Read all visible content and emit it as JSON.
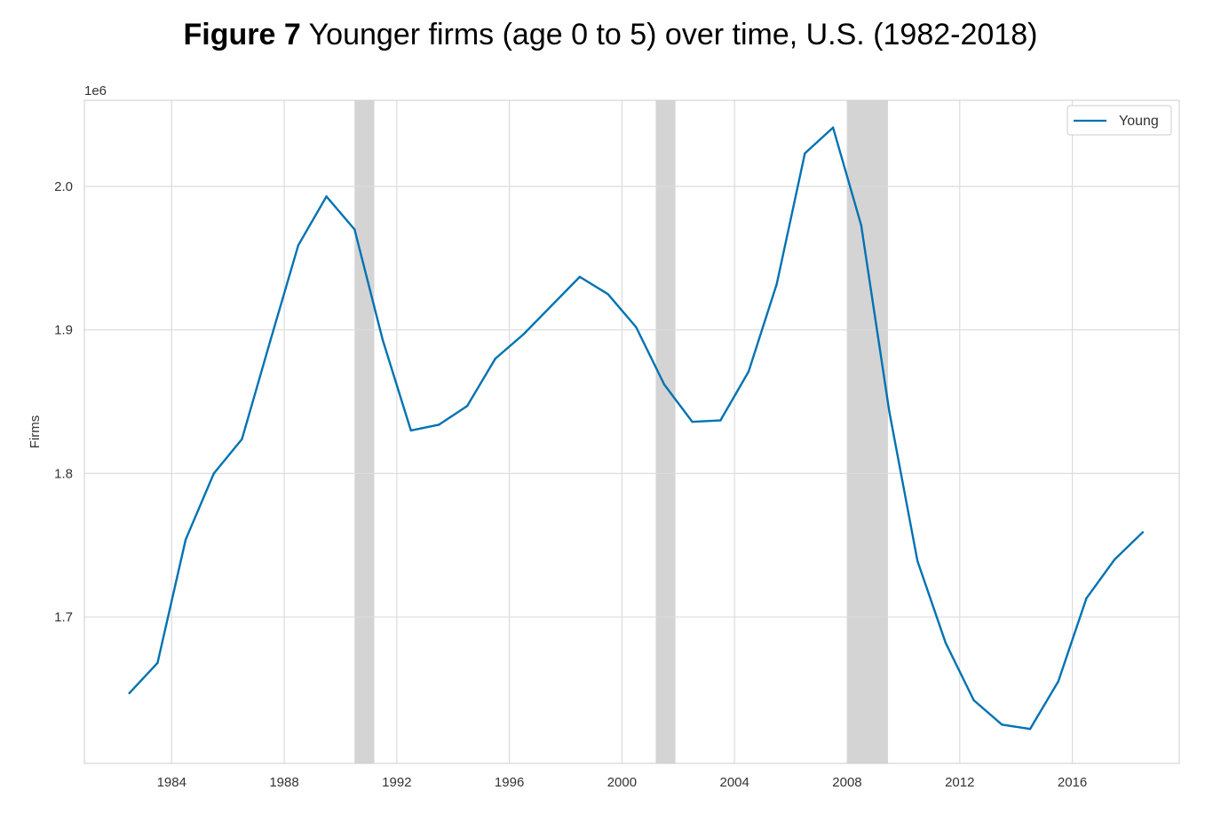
{
  "title": {
    "bold": "Figure 7",
    "rest": "Younger firms (age 0 to 5) over time, U.S. (1982-2018)"
  },
  "colors": {
    "series": "#0072b2",
    "grid": "#dcdcdc",
    "recession": "#d4d4d4",
    "axes_border": "#cccccc"
  },
  "chart_data": {
    "type": "line",
    "title": "Figure 7 Younger firms (age 0 to 5) over time, U.S. (1982-2018)",
    "ylabel": "Firms",
    "xlabel": "",
    "y_offset_label": "1e6",
    "xlim": [
      1980.9,
      2019.8
    ],
    "ylim": [
      1.598,
      2.06
    ],
    "x_ticks": [
      1984,
      1988,
      1992,
      1996,
      2000,
      2004,
      2008,
      2012,
      2016
    ],
    "x_tick_labels": [
      "1984",
      "1988",
      "1992",
      "1996",
      "2000",
      "2004",
      "2008",
      "2012",
      "2016"
    ],
    "y_ticks": [
      1.7,
      1.8,
      1.9,
      2.0
    ],
    "y_tick_labels": [
      "1.7",
      "1.8",
      "1.9",
      "2.0"
    ],
    "grid": true,
    "legend_position": "top-right",
    "recession_spans": [
      [
        1990.5,
        1991.2
      ],
      [
        2001.2,
        2001.9
      ],
      [
        2008.0,
        2009.45
      ]
    ],
    "series": [
      {
        "name": "Young",
        "x": [
          1982.5,
          1983.5,
          1984.5,
          1985.5,
          1986.5,
          1987.5,
          1988.5,
          1989.5,
          1990.5,
          1991.5,
          1992.5,
          1993.5,
          1994.5,
          1995.5,
          1996.5,
          1997.5,
          1998.5,
          1999.5,
          2000.5,
          2001.5,
          2002.5,
          2003.5,
          2004.5,
          2005.5,
          2006.5,
          2007.5,
          2008.5,
          2009.5,
          2010.5,
          2011.5,
          2012.5,
          2013.5,
          2014.5,
          2015.5,
          2016.5,
          2017.5,
          2018.5
        ],
        "values": [
          1.647,
          1.668,
          1.754,
          1.8,
          1.824,
          1.892,
          1.959,
          1.993,
          1.97,
          1.893,
          1.83,
          1.834,
          1.847,
          1.88,
          1.897,
          1.917,
          1.937,
          1.925,
          1.902,
          1.862,
          1.836,
          1.837,
          1.871,
          1.932,
          2.023,
          2.041,
          1.973,
          1.843,
          1.739,
          1.682,
          1.642,
          1.625,
          1.622,
          1.655,
          1.713,
          1.74,
          1.759
        ]
      }
    ]
  }
}
